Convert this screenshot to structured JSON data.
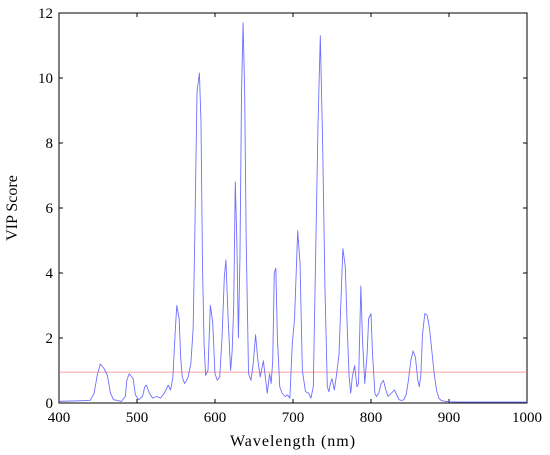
{
  "chart_data": {
    "type": "line",
    "xlabel": "Wavelength (nm)",
    "ylabel": "VIP Score",
    "xlim": [
      400,
      1000
    ],
    "ylim": [
      0,
      12
    ],
    "x_ticks": [
      400,
      500,
      600,
      700,
      800,
      900,
      1000
    ],
    "y_ticks": [
      0,
      2,
      4,
      6,
      8,
      10,
      12
    ],
    "grid": false,
    "colors": {
      "series": "#6f6fff",
      "threshold": "#ff7f7f",
      "axes": "#000000"
    },
    "threshold": {
      "y": 0.95
    },
    "series": [
      {
        "x": [
          400,
          440,
          445,
          449,
          453,
          458,
          462,
          466,
          470,
          475,
          480,
          485,
          487,
          490,
          495,
          498,
          502,
          507,
          510,
          512,
          516,
          520,
          525,
          530,
          535,
          540,
          543,
          546,
          549,
          551,
          554,
          556,
          558,
          561,
          565,
          569,
          572,
          574,
          577,
          580,
          582,
          584,
          586,
          588,
          591,
          594,
          597,
          600,
          603,
          606,
          609,
          612,
          614,
          617,
          620,
          622,
          624,
          626,
          628,
          630,
          632,
          634,
          636,
          638,
          640,
          643,
          646,
          649,
          652,
          655,
          658,
          662,
          665,
          667,
          670,
          672,
          674,
          676,
          678,
          680,
          683,
          686,
          690,
          693,
          696,
          699,
          702,
          706,
          709,
          712,
          716,
          720,
          723,
          726,
          729,
          732,
          735,
          738,
          741,
          744,
          746,
          748,
          750,
          753,
          756,
          759,
          762,
          764,
          767,
          770,
          772,
          774,
          776,
          779,
          782,
          784,
          787,
          789,
          792,
          795,
          797,
          800,
          802,
          805,
          807,
          810,
          813,
          816,
          819,
          822,
          826,
          830,
          833,
          836,
          839,
          842,
          845,
          848,
          851,
          854,
          857,
          860,
          862,
          864,
          866,
          869,
          872,
          875,
          878,
          881,
          884,
          887,
          890,
          895,
          900,
          910,
          930,
          960,
          1000
        ],
        "y": [
          0.05,
          0.08,
          0.3,
          0.85,
          1.2,
          1.05,
          0.85,
          0.3,
          0.1,
          0.08,
          0.05,
          0.2,
          0.7,
          0.9,
          0.75,
          0.25,
          0.1,
          0.2,
          0.5,
          0.55,
          0.3,
          0.15,
          0.2,
          0.15,
          0.3,
          0.55,
          0.4,
          0.8,
          2.2,
          3.0,
          2.6,
          1.4,
          0.8,
          0.6,
          0.75,
          1.2,
          2.3,
          5.0,
          9.6,
          10.15,
          8.7,
          4.2,
          1.8,
          0.85,
          1.0,
          3.0,
          2.5,
          0.9,
          0.7,
          0.8,
          2.0,
          3.9,
          4.4,
          2.5,
          1.0,
          1.6,
          3.0,
          6.8,
          5.0,
          2.0,
          4.5,
          9.5,
          11.7,
          9.6,
          5.0,
          0.9,
          0.7,
          1.2,
          2.1,
          1.3,
          0.8,
          1.3,
          0.7,
          0.3,
          0.9,
          0.6,
          1.3,
          4.0,
          4.15,
          2.0,
          0.5,
          0.3,
          0.2,
          0.25,
          0.15,
          1.8,
          2.6,
          5.3,
          4.3,
          1.0,
          0.35,
          0.3,
          0.15,
          0.5,
          4.5,
          8.5,
          11.3,
          8.0,
          3.5,
          0.5,
          0.35,
          0.6,
          0.75,
          0.4,
          0.9,
          1.5,
          3.5,
          4.75,
          4.2,
          2.0,
          0.8,
          0.3,
          0.8,
          1.15,
          0.5,
          0.6,
          3.6,
          2.0,
          0.6,
          1.5,
          2.6,
          2.75,
          1.5,
          0.3,
          0.2,
          0.3,
          0.6,
          0.7,
          0.4,
          0.2,
          0.3,
          0.4,
          0.25,
          0.1,
          0.08,
          0.1,
          0.25,
          0.7,
          1.3,
          1.6,
          1.4,
          0.7,
          0.5,
          0.9,
          2.1,
          2.75,
          2.7,
          2.3,
          1.6,
          0.9,
          0.4,
          0.15,
          0.08,
          0.05,
          0.04,
          0.03,
          0.03,
          0.03,
          0.03
        ]
      }
    ]
  }
}
